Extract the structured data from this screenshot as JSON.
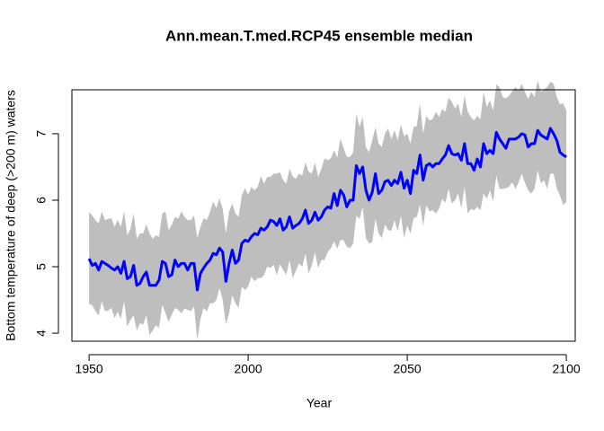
{
  "chart_data": {
    "type": "line",
    "title": "Ann.mean.T.med.RCP45 ensemble median",
    "xlabel": "Year",
    "ylabel": "Bottom temperature of deep (>200 m) waters",
    "x": [
      1950,
      1951,
      1952,
      1953,
      1954,
      1955,
      1956,
      1957,
      1958,
      1959,
      1960,
      1961,
      1962,
      1963,
      1964,
      1965,
      1966,
      1967,
      1968,
      1969,
      1970,
      1971,
      1972,
      1973,
      1974,
      1975,
      1976,
      1977,
      1978,
      1979,
      1980,
      1981,
      1982,
      1983,
      1984,
      1985,
      1986,
      1987,
      1988,
      1989,
      1990,
      1991,
      1992,
      1993,
      1994,
      1995,
      1996,
      1997,
      1998,
      1999,
      2000,
      2001,
      2002,
      2003,
      2004,
      2005,
      2006,
      2007,
      2008,
      2009,
      2010,
      2011,
      2012,
      2013,
      2014,
      2015,
      2016,
      2017,
      2018,
      2019,
      2020,
      2021,
      2022,
      2023,
      2024,
      2025,
      2026,
      2027,
      2028,
      2029,
      2030,
      2031,
      2032,
      2033,
      2034,
      2035,
      2036,
      2037,
      2038,
      2039,
      2040,
      2041,
      2042,
      2043,
      2044,
      2045,
      2046,
      2047,
      2048,
      2049,
      2050,
      2051,
      2052,
      2053,
      2054,
      2055,
      2056,
      2057,
      2058,
      2059,
      2060,
      2061,
      2062,
      2063,
      2064,
      2065,
      2066,
      2067,
      2068,
      2069,
      2070,
      2071,
      2072,
      2073,
      2074,
      2075,
      2076,
      2077,
      2078,
      2079,
      2080,
      2081,
      2082,
      2083,
      2084,
      2085,
      2086,
      2087,
      2088,
      2089,
      2090,
      2091,
      2092,
      2093,
      2094,
      2095,
      2096,
      2097,
      2098,
      2099,
      2100
    ],
    "values": [
      5.12,
      5.02,
      5.05,
      4.95,
      5.08,
      5.05,
      5.02,
      4.98,
      4.95,
      5.0,
      4.9,
      5.08,
      4.82,
      4.85,
      5.02,
      4.72,
      4.75,
      4.85,
      4.92,
      4.72,
      4.72,
      4.72,
      4.8,
      5.08,
      5.05,
      4.85,
      4.88,
      5.1,
      5.0,
      5.05,
      5.05,
      4.95,
      5.05,
      5.05,
      4.65,
      4.9,
      4.98,
      5.05,
      5.1,
      5.2,
      5.18,
      5.28,
      5.22,
      4.78,
      5.05,
      5.25,
      5.05,
      5.1,
      5.35,
      5.4,
      5.38,
      5.45,
      5.5,
      5.48,
      5.58,
      5.55,
      5.6,
      5.7,
      5.68,
      5.62,
      5.72,
      5.55,
      5.6,
      5.75,
      5.58,
      5.62,
      5.65,
      5.72,
      5.85,
      5.65,
      5.7,
      5.82,
      5.7,
      5.75,
      5.85,
      5.9,
      5.88,
      6.1,
      5.92,
      6.15,
      6.08,
      5.9,
      6.0,
      6.0,
      6.52,
      6.4,
      6.5,
      6.15,
      6.0,
      6.12,
      6.4,
      6.1,
      6.15,
      6.28,
      6.3,
      6.22,
      6.3,
      6.25,
      6.42,
      6.18,
      6.3,
      6.1,
      6.45,
      6.4,
      6.68,
      6.3,
      6.52,
      6.55,
      6.5,
      6.55,
      6.55,
      6.62,
      6.68,
      6.82,
      6.7,
      6.68,
      6.7,
      6.6,
      6.85,
      6.55,
      6.55,
      6.45,
      6.62,
      6.5,
      6.85,
      6.7,
      6.75,
      6.7,
      7.02,
      6.92,
      6.85,
      6.78,
      6.92,
      6.92,
      6.92,
      6.95,
      7.0,
      6.98,
      6.8,
      6.85,
      6.85,
      7.05,
      6.98,
      6.95,
      6.92,
      7.08,
      7.0,
      6.9,
      6.72,
      6.68,
      6.65
    ],
    "upper": [
      5.82,
      5.77,
      5.7,
      5.65,
      5.83,
      5.7,
      5.72,
      5.73,
      5.6,
      5.7,
      5.6,
      5.83,
      5.47,
      5.57,
      5.8,
      5.42,
      5.5,
      5.5,
      5.64,
      5.5,
      5.42,
      5.47,
      5.45,
      5.8,
      5.83,
      5.55,
      5.63,
      5.75,
      5.72,
      5.83,
      5.75,
      5.7,
      5.7,
      5.77,
      5.43,
      5.6,
      5.73,
      5.7,
      5.82,
      5.98,
      5.88,
      6.03,
      5.87,
      5.5,
      5.83,
      5.95,
      5.8,
      5.75,
      6.07,
      6.18,
      6.08,
      6.2,
      6.15,
      6.2,
      6.36,
      6.25,
      6.35,
      6.35,
      6.4,
      6.4,
      6.42,
      6.3,
      6.25,
      6.47,
      6.36,
      6.32,
      6.4,
      6.37,
      6.57,
      6.43,
      6.4,
      6.57,
      6.35,
      6.47,
      6.63,
      6.6,
      6.63,
      6.75,
      6.64,
      6.93,
      6.78,
      6.65,
      6.65,
      6.72,
      7.3,
      7.1,
      7.25,
      6.8,
      6.72,
      6.9,
      7.1,
      6.85,
      6.8,
      7.0,
      7.08,
      6.92,
      7.05,
      6.9,
      7.14,
      6.96,
      7.0,
      6.85,
      7.1,
      7.12,
      7.46,
      7.0,
      7.27,
      7.2,
      7.22,
      7.33,
      7.25,
      7.37,
      7.33,
      7.54,
      7.48,
      7.38,
      7.45,
      7.25,
      7.57,
      7.33,
      7.25,
      7.2,
      7.27,
      7.22,
      7.63,
      7.4,
      7.5,
      7.35,
      7.74,
      7.7,
      7.55,
      7.53,
      7.57,
      7.64,
      7.7,
      7.65,
      7.75,
      7.63,
      7.52,
      7.63,
      7.55,
      7.8,
      7.63,
      7.67,
      7.7,
      7.78,
      7.75,
      7.55,
      7.44,
      7.46,
      7.35
    ],
    "lower": [
      4.44,
      4.42,
      4.33,
      4.27,
      4.48,
      4.33,
      4.34,
      4.38,
      4.23,
      4.32,
      4.22,
      4.48,
      4.1,
      4.2,
      4.27,
      4.04,
      4.15,
      4.13,
      4.27,
      3.97,
      4.04,
      4.12,
      4.08,
      4.43,
      4.3,
      4.17,
      4.28,
      4.38,
      4.35,
      4.3,
      4.37,
      4.35,
      4.33,
      4.4,
      3.9,
      4.22,
      4.38,
      4.33,
      4.45,
      4.45,
      4.5,
      4.68,
      4.5,
      4.13,
      4.3,
      4.57,
      4.45,
      4.38,
      4.7,
      4.65,
      4.7,
      4.85,
      4.78,
      4.83,
      4.83,
      4.87,
      5.0,
      4.98,
      5.03,
      4.87,
      5.04,
      4.95,
      4.88,
      5.1,
      4.83,
      4.94,
      5.05,
      5.0,
      5.2,
      4.9,
      5.02,
      5.22,
      4.98,
      5.1,
      5.1,
      5.22,
      5.28,
      5.38,
      5.27,
      5.4,
      5.4,
      5.3,
      5.28,
      5.35,
      5.77,
      5.72,
      5.9,
      5.43,
      5.35,
      5.37,
      5.72,
      5.5,
      5.43,
      5.63,
      5.55,
      5.54,
      5.7,
      5.53,
      5.77,
      5.43,
      5.62,
      5.5,
      5.73,
      5.75,
      5.93,
      5.62,
      5.92,
      5.83,
      5.85,
      5.8,
      5.87,
      6.02,
      5.96,
      6.17,
      5.95,
      6.0,
      6.1,
      5.88,
      6.2,
      5.8,
      5.87,
      5.85,
      5.9,
      5.85,
      6.1,
      6.02,
      6.15,
      5.98,
      6.37,
      6.17,
      6.17,
      6.18,
      6.2,
      6.27,
      6.17,
      6.27,
      6.4,
      6.26,
      6.15,
      6.1,
      6.17,
      6.45,
      6.26,
      6.3,
      6.17,
      6.4,
      6.4,
      6.18,
      6.07,
      5.93,
      5.97
    ],
    "color": "#0000ff",
    "band_color": "#bebebe",
    "xlim": [
      1944.6,
      2102.8
    ],
    "ylim": [
      3.88,
      7.66
    ],
    "xticks": [
      1950,
      2000,
      2050,
      2100
    ],
    "yticks": [
      4,
      5,
      6,
      7
    ]
  }
}
